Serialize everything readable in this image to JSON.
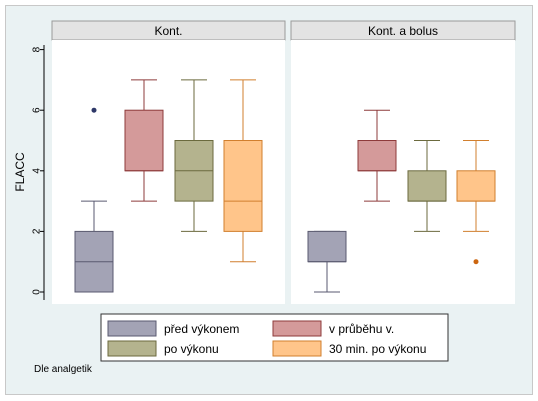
{
  "chart_data": {
    "type": "box",
    "ylabel": "FLACC",
    "ylim": [
      0,
      8
    ],
    "yticks": [
      0,
      2,
      4,
      6,
      8
    ],
    "panels": [
      {
        "title": "Kont.",
        "boxes": [
          {
            "series": "před výkonem",
            "min": 0,
            "q1": 0,
            "median": 1,
            "q3": 2,
            "max": 3,
            "outliers": [
              6
            ]
          },
          {
            "series": "v průběhu v.",
            "min": 3,
            "q1": 4,
            "median": 4,
            "q3": 6,
            "max": 7,
            "outliers": []
          },
          {
            "series": "po výkonu",
            "min": 2,
            "q1": 3,
            "median": 4,
            "q3": 5,
            "max": 7,
            "outliers": []
          },
          {
            "series": "30 min. po výkonu",
            "min": 1,
            "q1": 2,
            "median": 3,
            "q3": 5,
            "max": 7,
            "outliers": []
          }
        ]
      },
      {
        "title": "Kont. a bolus",
        "boxes": [
          {
            "series": "před výkonem",
            "min": 0,
            "q1": 1,
            "median": 1,
            "q3": 2,
            "max": 2,
            "outliers": []
          },
          {
            "series": "v průběhu v.",
            "min": 3,
            "q1": 4,
            "median": 4,
            "q3": 5,
            "max": 6,
            "outliers": []
          },
          {
            "series": "po výkonu",
            "min": 2,
            "q1": 3,
            "median": 3,
            "q3": 4,
            "max": 5,
            "outliers": []
          },
          {
            "series": "30 min. po výkonu",
            "min": 2,
            "q1": 3,
            "median": 3,
            "q3": 4,
            "max": 5,
            "outliers": [
              1
            ]
          }
        ]
      }
    ],
    "legend": {
      "placement": "bottom",
      "items": [
        {
          "label": "před výkonem",
          "color": "#a3a3b5"
        },
        {
          "label": "v průběhu v.",
          "color": "#d49a9a"
        },
        {
          "label": "po výkonu",
          "color": "#b4b38e"
        },
        {
          "label": "30 min. po výkonu",
          "color": "#ffc58a"
        }
      ]
    },
    "colors": {
      "box_stroke": [
        "#5a5a70",
        "#8e3b3b",
        "#6b6a3e",
        "#d17f2e"
      ],
      "outlier": [
        "#2e3868",
        "#8e3b3b",
        "#6b6a3e",
        "#cc6610"
      ]
    },
    "grid": false,
    "note": "Dle analgetik"
  }
}
